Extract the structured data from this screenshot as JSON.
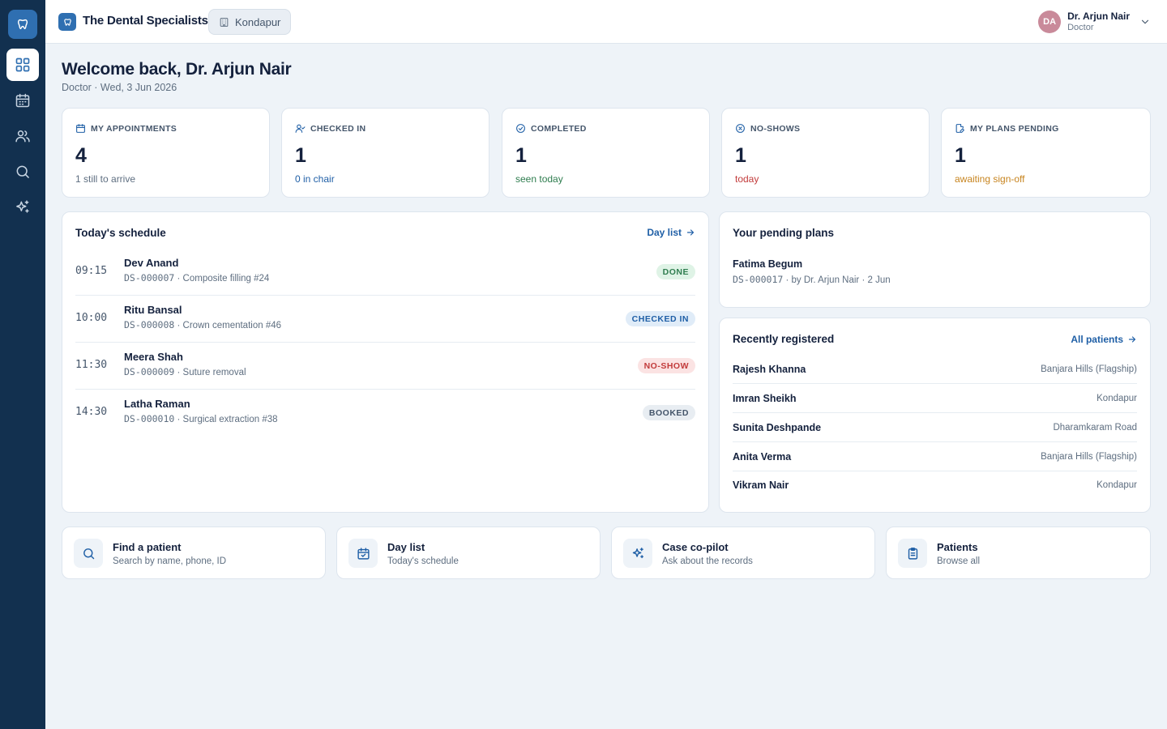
{
  "brand": {
    "name": "The Dental Specialists",
    "icon": "tooth-icon"
  },
  "clinic": {
    "name": "Kondapur",
    "icon": "building-icon"
  },
  "user": {
    "initials": "DA",
    "name": "Dr. Arjun Nair",
    "role": "Doctor"
  },
  "nav": [
    {
      "key": "dashboard",
      "icon": "grid-icon",
      "active": true
    },
    {
      "key": "calendar",
      "icon": "calendar-icon",
      "active": false
    },
    {
      "key": "patients",
      "icon": "users-icon",
      "active": false
    },
    {
      "key": "search",
      "icon": "search-icon",
      "active": false
    },
    {
      "key": "copilot",
      "icon": "sparkles-icon",
      "active": false
    }
  ],
  "welcome": {
    "title": "Welcome back, Dr. Arjun Nair",
    "subtitle": "Doctor · Wed, 3 Jun 2026"
  },
  "stats": [
    {
      "label": "MY APPOINTMENTS",
      "value": "4",
      "note": "1 still to arrive",
      "icon": "calendar-icon",
      "note_color": "#5e6e80"
    },
    {
      "label": "CHECKED IN",
      "value": "1",
      "note": "0 in chair",
      "icon": "user-check-icon",
      "note_color": "#1f5fa6"
    },
    {
      "label": "COMPLETED",
      "value": "1",
      "note": "seen today",
      "icon": "check-circle-icon",
      "note_color": "#2f7d4f"
    },
    {
      "label": "NO-SHOWS",
      "value": "1",
      "note": "today",
      "icon": "x-circle-icon",
      "note_color": "#c23b3b"
    },
    {
      "label": "MY PLANS PENDING",
      "value": "1",
      "note": "awaiting sign-off",
      "icon": "file-edit-icon",
      "note_color": "#c7841f"
    }
  ],
  "schedule": {
    "title": "Today's schedule",
    "link": "Day list",
    "rows": [
      {
        "time": "09:15",
        "name": "Dev Anand",
        "id": "DS-000007",
        "procedure": "Composite filling #24",
        "status": "DONE",
        "status_bg": "#dff3e6",
        "status_fg": "#2f7d4f"
      },
      {
        "time": "10:00",
        "name": "Ritu Bansal",
        "id": "DS-000008",
        "procedure": "Crown cementation #46",
        "status": "CHECKED IN",
        "status_bg": "#e0ecf8",
        "status_fg": "#1f5fa6"
      },
      {
        "time": "11:30",
        "name": "Meera Shah",
        "id": "DS-000009",
        "procedure": "Suture removal",
        "status": "NO-SHOW",
        "status_bg": "#fbe3e3",
        "status_fg": "#c23b3b"
      },
      {
        "time": "14:30",
        "name": "Latha Raman",
        "id": "DS-000010",
        "procedure": "Surgical extraction #38",
        "status": "BOOKED",
        "status_bg": "#e8edf2",
        "status_fg": "#45566b"
      }
    ]
  },
  "pending_plans": {
    "title": "Your pending plans",
    "items": [
      {
        "name": "Fatima Begum",
        "id": "DS-000017",
        "detail": " · by Dr. Arjun Nair · 2 Jun"
      }
    ]
  },
  "recent": {
    "title": "Recently registered",
    "link": "All patients",
    "rows": [
      {
        "name": "Rajesh Khanna",
        "branch": "Banjara Hills (Flagship)"
      },
      {
        "name": "Imran Sheikh",
        "branch": "Kondapur"
      },
      {
        "name": "Sunita Deshpande",
        "branch": "Dharamkaram Road"
      },
      {
        "name": "Anita Verma",
        "branch": "Banjara Hills (Flagship)"
      },
      {
        "name": "Vikram Nair",
        "branch": "Kondapur"
      }
    ]
  },
  "actions": [
    {
      "title": "Find a patient",
      "subtitle": "Search by name, phone, ID",
      "icon": "search-icon"
    },
    {
      "title": "Day list",
      "subtitle": "Today's schedule",
      "icon": "calendar-check-icon"
    },
    {
      "title": "Case co-pilot",
      "subtitle": "Ask about the records",
      "icon": "sparkles-icon"
    },
    {
      "title": "Patients",
      "subtitle": "Browse all",
      "icon": "clipboard-icon"
    }
  ],
  "colors": {
    "primary": "#1f5fa6",
    "rail": "#12304f",
    "background": "#eef3f8"
  }
}
